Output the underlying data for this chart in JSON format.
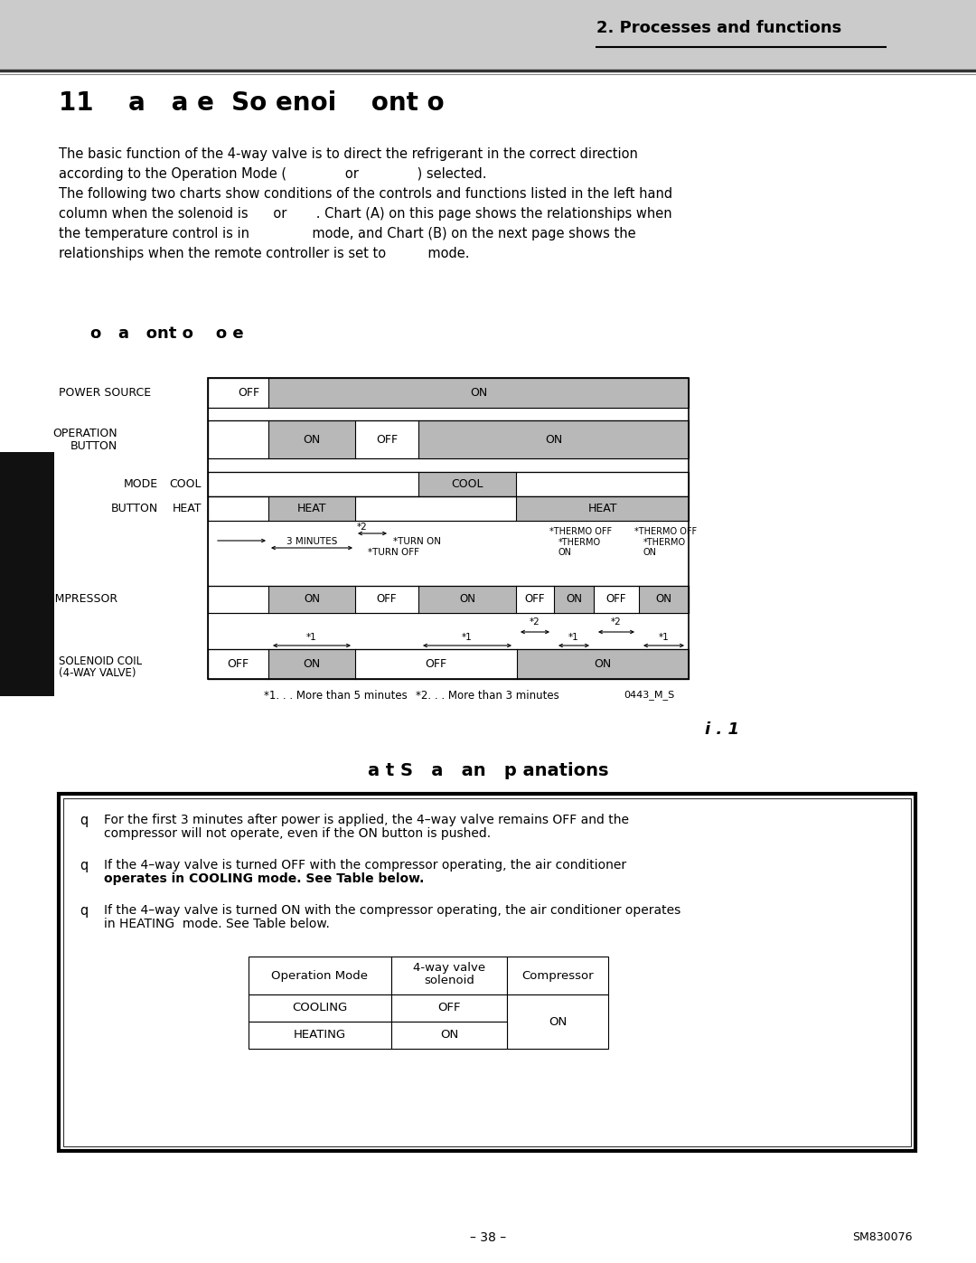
{
  "page_header": "2. Processes and functions",
  "section_title": "11    a   a e  So enoi    ont o",
  "body_text": [
    "The basic function of the 4-way valve is to direct the refrigerant in the correct direction",
    "according to the Operation Mode (              or              ) selected.",
    "The following two charts show conditions of the controls and functions listed in the left hand",
    "column when the solenoid is      or       . Chart (A) on this page shows the relationships when",
    "the temperature control is in               mode, and Chart (B) on the next page shows the",
    "relationships when the remote controller is set to          mode."
  ],
  "chart_title": "o   a   ont o    o e",
  "chart_subtitle": "i . 1",
  "footnote1": "*1. . . More than 5 minutes",
  "footnote2": "*2. . . More than 3 minutes",
  "footnote_code": "0443_M_S",
  "notes_title": "a t S   a   an   p anations",
  "note1_line1": "For the first 3 minutes after power is applied, the 4–way valve remains OFF and the",
  "note1_line2": "compressor will not operate, even if the ON button is pushed.",
  "note2_line1": "If the 4–way valve is turned OFF with the compressor operating, the air conditioner",
  "note2_line2": "operates in COOLING mode. See Table below.",
  "note3_line1": "If the 4–way valve is turned ON with the compressor operating, the air conditioner operates",
  "note3_line2": "in HEATING  mode. See Table below.",
  "table_h0": "Operation Mode",
  "table_h1": "4-way valve\nsolenoid",
  "table_h2": "Compressor",
  "table_r1": [
    "COOLING",
    "OFF",
    "ON"
  ],
  "table_r2": [
    "HEATING",
    "ON",
    "ON"
  ],
  "page_number": "– 38 –",
  "sm_number": "SM830076",
  "header_bg": "#cbcbcb",
  "bar_color": "#b8b8b8",
  "bg_color": "#ffffff"
}
